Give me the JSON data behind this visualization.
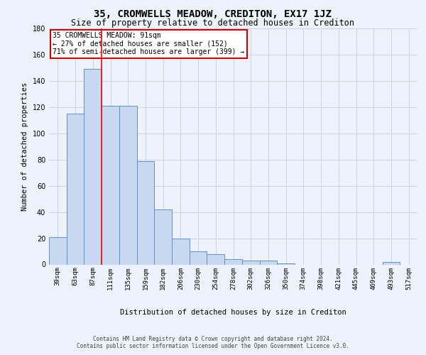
{
  "title": "35, CROMWELLS MEADOW, CREDITON, EX17 1JZ",
  "subtitle": "Size of property relative to detached houses in Crediton",
  "xlabel": "Distribution of detached houses by size in Crediton",
  "ylabel": "Number of detached properties",
  "bar_labels": [
    "39sqm",
    "63sqm",
    "87sqm",
    "111sqm",
    "135sqm",
    "159sqm",
    "182sqm",
    "206sqm",
    "230sqm",
    "254sqm",
    "278sqm",
    "302sqm",
    "326sqm",
    "350sqm",
    "374sqm",
    "398sqm",
    "421sqm",
    "445sqm",
    "469sqm",
    "493sqm",
    "517sqm"
  ],
  "bar_values": [
    21,
    115,
    149,
    121,
    121,
    79,
    42,
    20,
    10,
    8,
    4,
    3,
    3,
    1,
    0,
    0,
    0,
    0,
    0,
    2,
    0
  ],
  "bar_color": "#c8d8f0",
  "bar_edge_color": "#6090c8",
  "grid_color": "#c8d4e8",
  "background_color": "#eef2fc",
  "red_line_index": 2,
  "annotation_text": "35 CROMWELLS MEADOW: 91sqm\n← 27% of detached houses are smaller (152)\n71% of semi-detached houses are larger (399) →",
  "annotation_box_color": "#ffffff",
  "annotation_box_edge": "#cc0000",
  "footnote": "Contains HM Land Registry data © Crown copyright and database right 2024.\nContains public sector information licensed under the Open Government Licence v3.0.",
  "ylim": [
    0,
    180
  ],
  "yticks": [
    0,
    20,
    40,
    60,
    80,
    100,
    120,
    140,
    160,
    180
  ],
  "title_fontsize": 10,
  "subtitle_fontsize": 8.5,
  "ylabel_fontsize": 7.5,
  "xlabel_fontsize": 7.5,
  "tick_fontsize": 6.5,
  "annot_fontsize": 7.0,
  "footnote_fontsize": 5.5
}
